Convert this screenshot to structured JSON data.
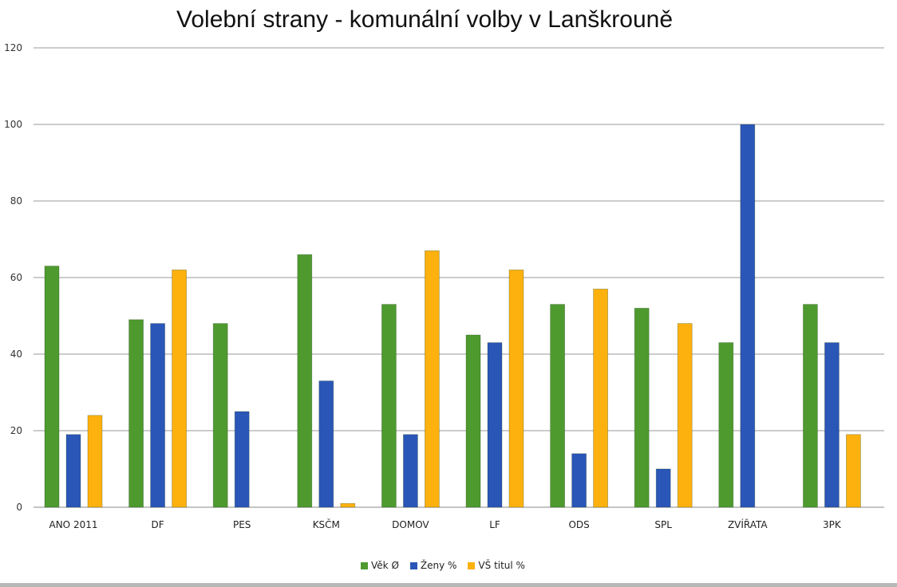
{
  "chart_data": {
    "type": "bar",
    "title": "Volební strany - komunální volby v Lanškrouně",
    "categories": [
      "ANO 2011",
      "DF",
      "PES",
      "KSČM",
      "DOMOV",
      "LF",
      "ODS",
      "SPL",
      "ZVÍŘATA",
      "3PK"
    ],
    "series": [
      {
        "name": "Věk Ø",
        "color": "#4e9a2f",
        "values": [
          63,
          49,
          48,
          66,
          53,
          45,
          53,
          52,
          43,
          53
        ]
      },
      {
        "name": "Ženy %",
        "color": "#2a56b8",
        "values": [
          19,
          48,
          25,
          33,
          19,
          43,
          14,
          10,
          100,
          43
        ]
      },
      {
        "name": "VŠ titul %",
        "color": "#fdb10e",
        "values": [
          24,
          62,
          null,
          1,
          67,
          62,
          57,
          48,
          null,
          19
        ]
      }
    ],
    "ylim": [
      0,
      120
    ],
    "yticks": [
      0,
      20,
      40,
      60,
      80,
      100,
      120
    ],
    "grid": true,
    "legend_position": "bottom"
  }
}
